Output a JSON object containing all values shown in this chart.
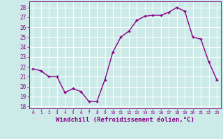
{
  "x": [
    0,
    1,
    2,
    3,
    4,
    5,
    6,
    7,
    8,
    9,
    10,
    11,
    12,
    13,
    14,
    15,
    16,
    17,
    18,
    19,
    20,
    21,
    22,
    23
  ],
  "y": [
    21.8,
    21.6,
    21.0,
    21.0,
    19.4,
    19.8,
    19.5,
    18.5,
    18.5,
    20.7,
    23.5,
    25.0,
    25.6,
    26.7,
    27.1,
    27.2,
    27.2,
    27.5,
    28.0,
    27.6,
    25.0,
    24.8,
    22.5,
    20.7
  ],
  "line_color": "#880088",
  "marker": "+",
  "marker_size": 3,
  "line_width": 1.0,
  "xlabel": "Windchill (Refroidissement éolien,°C)",
  "xlabel_fontsize": 6.5,
  "ylabel_ticks": [
    18,
    19,
    20,
    21,
    22,
    23,
    24,
    25,
    26,
    27,
    28
  ],
  "ylim": [
    17.8,
    28.6
  ],
  "xlim": [
    -0.5,
    23.5
  ],
  "xtick_labels": [
    "0",
    "1",
    "2",
    "3",
    "4",
    "5",
    "6",
    "7",
    "8",
    "9",
    "10",
    "11",
    "12",
    "13",
    "14",
    "15",
    "16",
    "17",
    "18",
    "19",
    "20",
    "21",
    "22",
    "23"
  ],
  "bg_color": "#cceae7",
  "grid_color": "#ffffff",
  "tick_color": "#880088",
  "label_color": "#880088"
}
